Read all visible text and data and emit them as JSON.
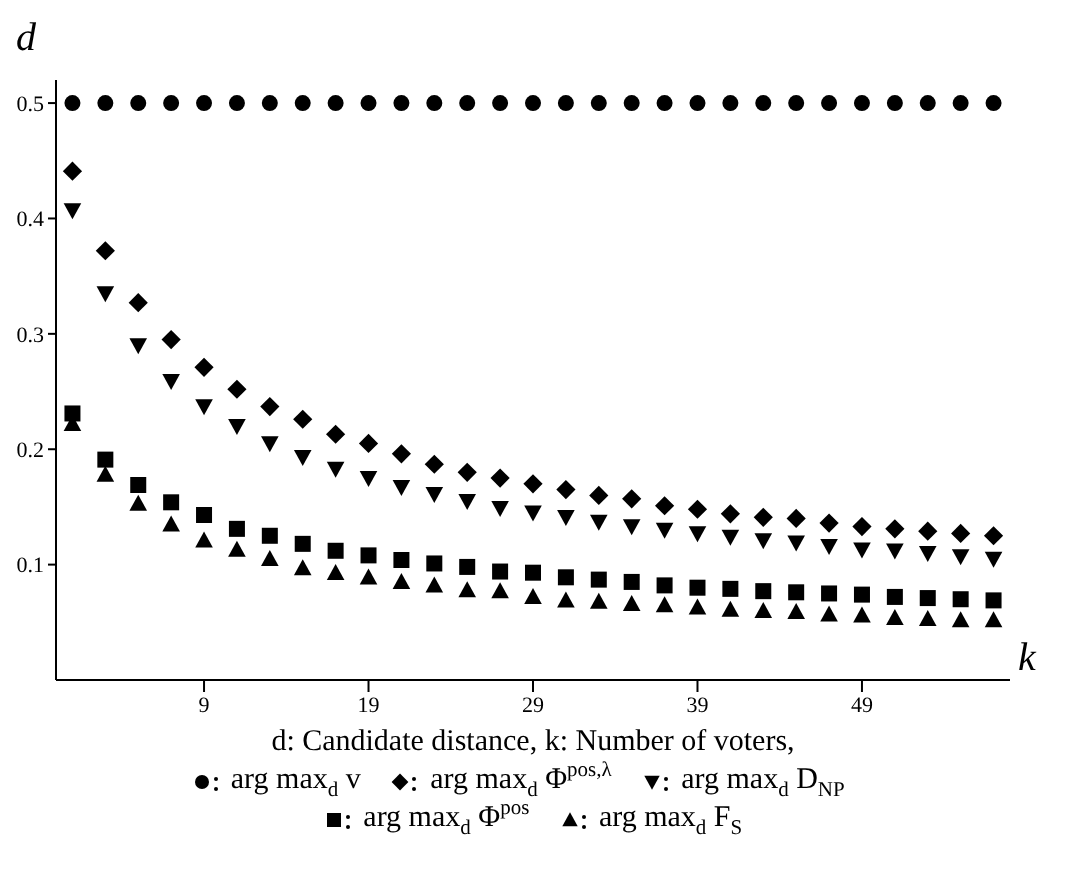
{
  "chart_data": {
    "type": "scatter",
    "xlabel": "k",
    "ylabel": "d",
    "annotations": [
      "d: Candidate distance, k: Number of voters,"
    ],
    "x": [
      1,
      3,
      5,
      7,
      9,
      11,
      13,
      15,
      17,
      19,
      21,
      23,
      25,
      27,
      29,
      31,
      33,
      35,
      37,
      39,
      41,
      43,
      45,
      47,
      49,
      51,
      53,
      55,
      57
    ],
    "series": [
      {
        "name": "arg max$_{d}$ v",
        "color": "#000000",
        "marker": "circle",
        "values": [
          0.5,
          0.5,
          0.5,
          0.5,
          0.5,
          0.5,
          0.5,
          0.5,
          0.5,
          0.5,
          0.5,
          0.5,
          0.5,
          0.5,
          0.5,
          0.5,
          0.5,
          0.5,
          0.5,
          0.5,
          0.5,
          0.5,
          0.5,
          0.5,
          0.5,
          0.5,
          0.5,
          0.5,
          0.5
        ]
      },
      {
        "name": "arg max$_{d}$ Φ$^{pos,λ}$",
        "color": "#000000",
        "marker": "diamond",
        "values": [
          0.441,
          0.372,
          0.327,
          0.295,
          0.271,
          0.252,
          0.237,
          0.226,
          0.213,
          0.205,
          0.196,
          0.187,
          0.18,
          0.175,
          0.17,
          0.165,
          0.16,
          0.157,
          0.151,
          0.148,
          0.144,
          0.141,
          0.14,
          0.136,
          0.133,
          0.131,
          0.129,
          0.127,
          0.125
        ]
      },
      {
        "name": "arg max$_{d}$ D$_{NP}$",
        "color": "#000000",
        "marker": "triangle-down",
        "values": [
          0.407,
          0.335,
          0.29,
          0.259,
          0.237,
          0.22,
          0.205,
          0.193,
          0.183,
          0.175,
          0.167,
          0.161,
          0.155,
          0.149,
          0.145,
          0.141,
          0.137,
          0.133,
          0.13,
          0.127,
          0.124,
          0.121,
          0.119,
          0.116,
          0.113,
          0.112,
          0.11,
          0.107,
          0.105
        ]
      },
      {
        "name": "arg max$_{d}$ Φ$^{pos}$",
        "color": "#000000",
        "marker": "square",
        "values": [
          0.231,
          0.191,
          0.169,
          0.154,
          0.143,
          0.131,
          0.125,
          0.118,
          0.112,
          0.108,
          0.104,
          0.101,
          0.098,
          0.094,
          0.093,
          0.089,
          0.087,
          0.085,
          0.082,
          0.08,
          0.079,
          0.077,
          0.076,
          0.075,
          0.074,
          0.072,
          0.071,
          0.07,
          0.069
        ]
      },
      {
        "name": "arg max$_{d}$ F$_{S}$",
        "color": "#000000",
        "marker": "triangle",
        "values": [
          0.222,
          0.178,
          0.153,
          0.135,
          0.121,
          0.113,
          0.105,
          0.097,
          0.093,
          0.089,
          0.085,
          0.082,
          0.078,
          0.077,
          0.072,
          0.069,
          0.068,
          0.066,
          0.065,
          0.063,
          0.061,
          0.06,
          0.059,
          0.057,
          0.056,
          0.054,
          0.053,
          0.052,
          0.052
        ]
      }
    ],
    "xlim": [
      0,
      58
    ],
    "xticks": [
      9,
      19,
      29,
      39,
      49
    ],
    "ylim": [
      0,
      0.52
    ],
    "yticks": [
      0.1,
      0.2,
      0.3,
      0.4,
      0.5
    ],
    "grid": false,
    "legend": "bottom"
  }
}
